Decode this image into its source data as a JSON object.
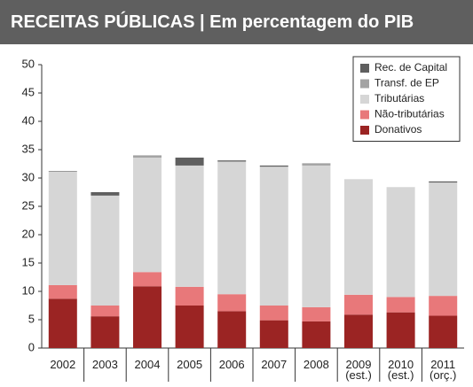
{
  "chart_data": {
    "type": "stacked_bar",
    "title": "RECEITAS PÚBLICAS | Em percentagem do PIB",
    "categories": [
      "2002",
      "2003",
      "2004",
      "2005",
      "2006",
      "2007",
      "2008",
      "2009\n(est.)",
      "2010\n(est.)",
      "2011\n(orç.)"
    ],
    "series": [
      {
        "name": "Donativos",
        "color": "#9b2423",
        "values": [
          8.7,
          5.6,
          10.9,
          7.5,
          6.5,
          4.9,
          4.7,
          5.9,
          6.3,
          5.7
        ]
      },
      {
        "name": "Não-tributárias",
        "color": "#e8787a",
        "values": [
          2.4,
          1.9,
          2.5,
          3.3,
          3.0,
          2.6,
          2.5,
          3.5,
          2.7,
          3.5
        ]
      },
      {
        "name": "Tributárias",
        "color": "#d6d6d6",
        "values": [
          20.0,
          19.4,
          20.2,
          21.4,
          23.4,
          24.5,
          25.0,
          20.4,
          19.4,
          20.0
        ]
      },
      {
        "name": "Transf. de EP",
        "color": "#a3a3a3",
        "values": [
          0,
          0,
          0.4,
          0,
          0,
          0,
          0.4,
          0,
          0,
          0
        ]
      },
      {
        "name": "Rec. de Capital",
        "color": "#5f5f5f",
        "values": [
          0.1,
          0.6,
          0,
          1.4,
          0.2,
          0.2,
          0,
          0,
          0,
          0.2
        ]
      }
    ],
    "ylim": [
      0,
      50
    ],
    "yticks": [
      0,
      5,
      10,
      15,
      20,
      25,
      30,
      35,
      40,
      45,
      50
    ],
    "legend": "upper right"
  }
}
